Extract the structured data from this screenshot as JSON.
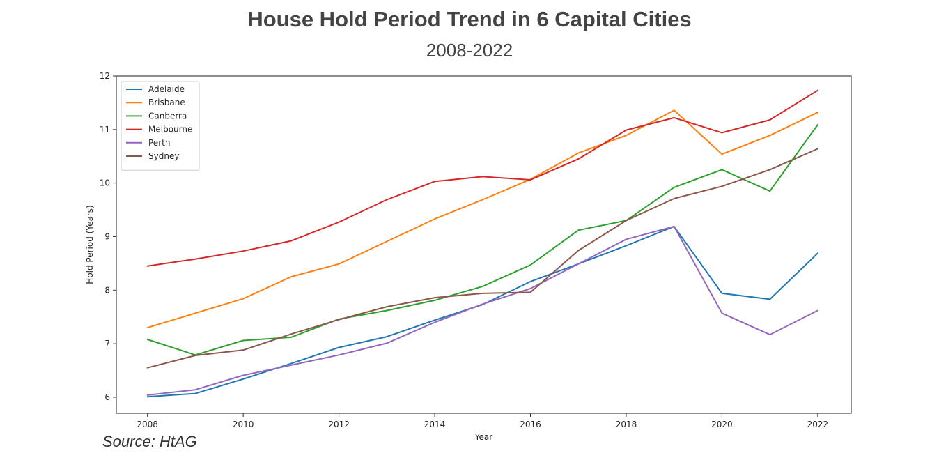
{
  "header": {
    "title": "House Hold Period Trend in 6 Capital Cities",
    "subtitle": "2008-2022"
  },
  "footer": {
    "source": "Source: HtAG"
  },
  "chart_data": {
    "type": "line",
    "title": "House Hold Period Trend in 6 Capital Cities",
    "subtitle": "2008-2022",
    "xlabel": "Year",
    "ylabel": "Hold Period (Years)",
    "x": [
      2008,
      2009,
      2010,
      2011,
      2012,
      2013,
      2014,
      2015,
      2016,
      2017,
      2018,
      2019,
      2020,
      2021,
      2022
    ],
    "xticks": [
      2008,
      2010,
      2012,
      2014,
      2016,
      2018,
      2020,
      2022
    ],
    "yticks": [
      6,
      7,
      8,
      9,
      10,
      11,
      12
    ],
    "xlim": [
      2007.35,
      2022.7
    ],
    "ylim": [
      5.7,
      12.0
    ],
    "grid": false,
    "legend_position": "top-left",
    "series": [
      {
        "name": "Adelaide",
        "color": "#1f77b4",
        "values": [
          6.01,
          6.07,
          6.34,
          6.63,
          6.93,
          7.13,
          7.44,
          7.73,
          8.16,
          8.49,
          8.83,
          9.19,
          7.94,
          7.83,
          8.69
        ]
      },
      {
        "name": "Brisbane",
        "color": "#ff7f0e",
        "values": [
          7.3,
          7.57,
          7.84,
          8.25,
          8.49,
          8.91,
          9.33,
          9.69,
          10.07,
          10.56,
          10.89,
          11.36,
          10.54,
          10.89,
          11.32
        ]
      },
      {
        "name": "Canberra",
        "color": "#2ca02c",
        "values": [
          7.08,
          6.79,
          7.06,
          7.12,
          7.46,
          7.62,
          7.81,
          8.07,
          8.47,
          9.12,
          9.3,
          9.92,
          10.25,
          9.85,
          11.09
        ]
      },
      {
        "name": "Melbourne",
        "color": "#d62728",
        "values": [
          8.45,
          8.58,
          8.73,
          8.92,
          9.27,
          9.69,
          10.03,
          10.12,
          10.06,
          10.45,
          10.99,
          11.22,
          10.94,
          11.18,
          11.73
        ]
      },
      {
        "name": "Perth",
        "color": "#9467bd",
        "values": [
          6.04,
          6.14,
          6.41,
          6.6,
          6.79,
          7.01,
          7.4,
          7.74,
          8.03,
          8.49,
          8.95,
          9.19,
          7.57,
          7.17,
          7.62
        ]
      },
      {
        "name": "Sydney",
        "color": "#8c564b",
        "values": [
          6.55,
          6.78,
          6.88,
          7.18,
          7.45,
          7.69,
          7.86,
          7.94,
          7.96,
          8.74,
          9.3,
          9.71,
          9.94,
          10.25,
          10.64
        ]
      }
    ]
  }
}
